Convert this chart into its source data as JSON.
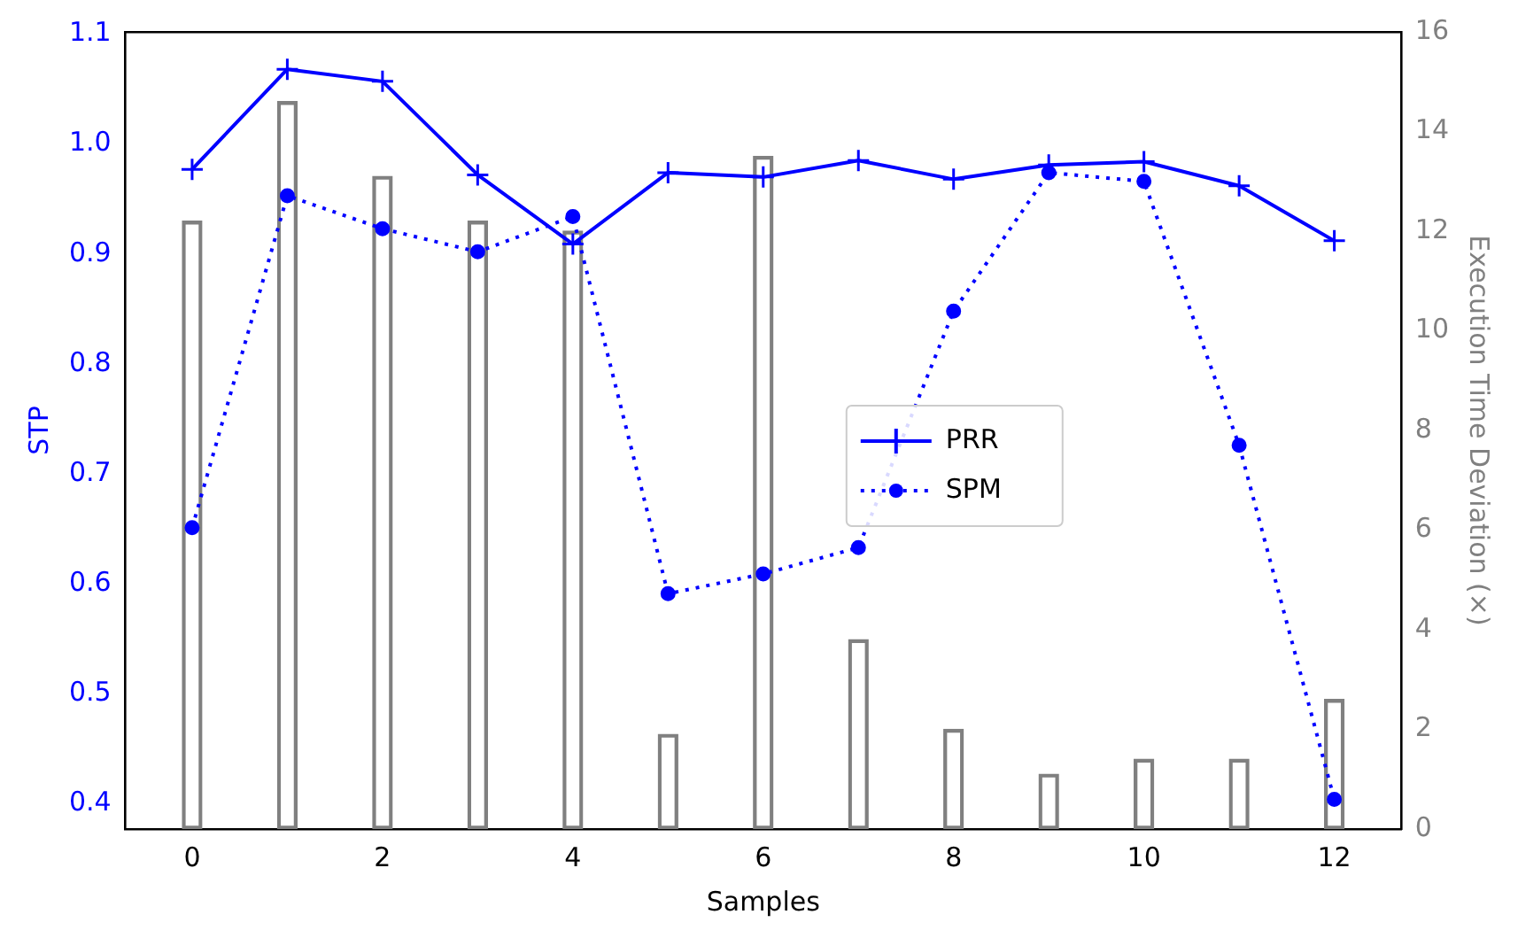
{
  "chart_data": {
    "type": "line",
    "xlabel": "Samples",
    "ylabel": "STP",
    "y2label": "Execution Time Deviation (×)",
    "x": [
      0,
      1,
      2,
      3,
      4,
      5,
      6,
      7,
      8,
      9,
      10,
      11,
      12
    ],
    "series": [
      {
        "name": "PRR",
        "color": "#0000ff",
        "marker": "cross",
        "line_style": "solid",
        "values": [
          0.977,
          1.068,
          1.057,
          0.972,
          0.909,
          0.974,
          0.97,
          0.985,
          0.968,
          0.981,
          0.984,
          0.962,
          0.912
        ]
      },
      {
        "name": "SPM",
        "color": "#0000ff",
        "marker": "circle",
        "line_style": "dotted",
        "values": [
          0.651,
          0.953,
          0.923,
          0.902,
          0.934,
          0.591,
          0.609,
          0.633,
          0.848,
          0.974,
          0.966,
          0.726,
          0.404
        ]
      },
      {
        "type": "bar",
        "axis": "y2",
        "color": "#808080",
        "values": [
          12.2,
          14.6,
          13.1,
          12.2,
          12.0,
          1.9,
          13.5,
          3.8,
          2.0,
          1.1,
          1.4,
          1.4,
          2.6
        ]
      }
    ],
    "xlim": [
      -0.7,
      12.7
    ],
    "xticks": [
      0,
      2,
      4,
      6,
      8,
      10,
      12
    ],
    "ylim": [
      0.377,
      1.102
    ],
    "yticks": [
      0.4,
      0.5,
      0.6,
      0.7,
      0.8,
      0.9,
      {
        "value": 1,
        "label": "1.0"
      },
      1.1
    ],
    "y2lim": [
      0,
      16
    ],
    "y2ticks": [
      0,
      2,
      4,
      6,
      8,
      10,
      12,
      14,
      16
    ],
    "legend": "center"
  }
}
